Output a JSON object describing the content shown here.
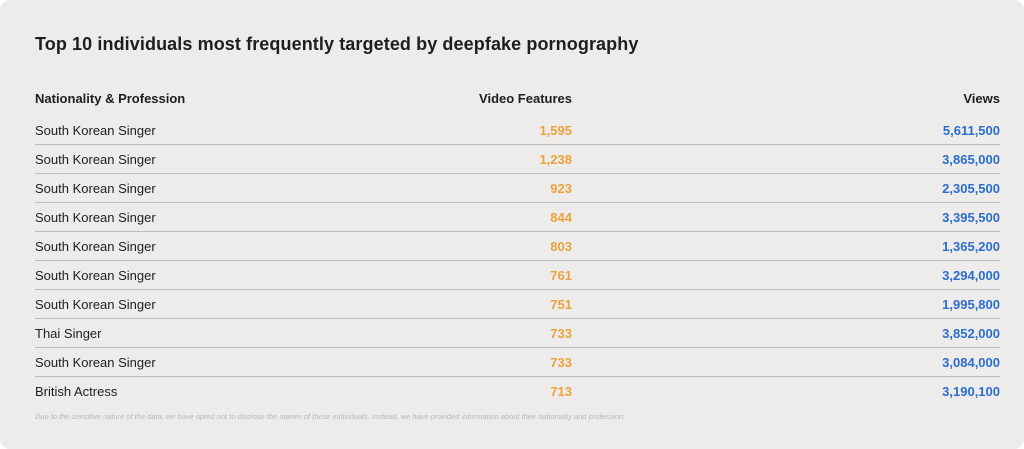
{
  "title": "Top 10 individuals most frequently targeted by deepfake pornography",
  "chart_data": {
    "type": "table",
    "title": "Top 10 individuals most frequently targeted by deepfake pornography",
    "columns": [
      "Nationality & Profession",
      "Video Features",
      "Views"
    ],
    "rows": [
      {
        "nationality_profession": "South Korean Singer",
        "video_features": "1,595",
        "views": "5,611,500"
      },
      {
        "nationality_profession": "South Korean Singer",
        "video_features": "1,238",
        "views": "3,865,000"
      },
      {
        "nationality_profession": "South Korean Singer",
        "video_features": "923",
        "views": "2,305,500"
      },
      {
        "nationality_profession": "South Korean Singer",
        "video_features": "844",
        "views": "3,395,500"
      },
      {
        "nationality_profession": "South Korean Singer",
        "video_features": "803",
        "views": "1,365,200"
      },
      {
        "nationality_profession": "South Korean Singer",
        "video_features": "761",
        "views": "3,294,000"
      },
      {
        "nationality_profession": "South Korean Singer",
        "video_features": "751",
        "views": "1,995,800"
      },
      {
        "nationality_profession": "Thai Singer",
        "video_features": "733",
        "views": "3,852,000"
      },
      {
        "nationality_profession": "South Korean Singer",
        "video_features": "733",
        "views": "3,084,000"
      },
      {
        "nationality_profession": "British Actress",
        "video_features": "713",
        "views": "3,190,100"
      }
    ],
    "video_features_values": [
      1595,
      1238,
      923,
      844,
      803,
      761,
      751,
      733,
      733,
      713
    ],
    "views_values": [
      5611500,
      3865000,
      2305500,
      3395500,
      1365200,
      3294000,
      1995800,
      3852000,
      3084000,
      3190100
    ]
  },
  "footnote": "Due to the sensitive nature of the data, we have opted not to disclose the names of these individuals. Instead, we have provided information about their nationality and profession.",
  "colors": {
    "background": "#edecea",
    "text": "#1e1e1e",
    "video_features": "#e9a33d",
    "views": "#2b6ecf",
    "divider": "#bcbcba",
    "footnote": "#b8b7b4"
  }
}
